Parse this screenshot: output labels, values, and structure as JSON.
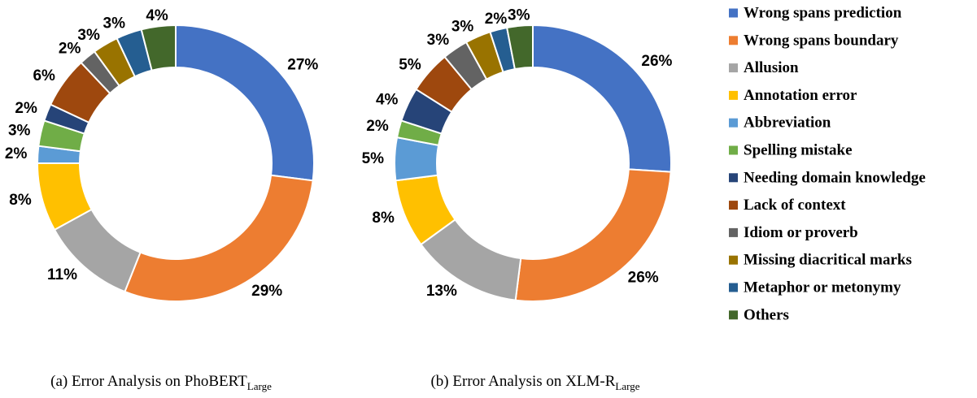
{
  "chart_data": [
    {
      "type": "pie",
      "donut": true,
      "caption": {
        "prefix": "(a) Error Analysis on ",
        "model": "PhoBERT",
        "subscript": "Large"
      },
      "categories": [
        "Wrong spans prediction",
        "Wrong spans boundary",
        "Allusion",
        "Annotation error",
        "Abbreviation",
        "Spelling mistake",
        "Needing domain knowledge",
        "Lack of context",
        "Idiom or proverb",
        "Missing diacritical marks",
        "Metaphor or metonymy",
        "Others"
      ],
      "values": [
        27,
        29,
        11,
        8,
        2,
        3,
        2,
        6,
        2,
        3,
        3,
        4
      ],
      "labels": [
        "27%",
        "29%",
        "11%",
        "8%",
        "2%",
        "3%",
        "2%",
        "6%",
        "2%",
        "3%",
        "3%",
        "4%"
      ]
    },
    {
      "type": "pie",
      "donut": true,
      "caption": {
        "prefix": "(b) Error Analysis on ",
        "model": "XLM-R",
        "subscript": "Large"
      },
      "categories": [
        "Wrong spans prediction",
        "Wrong spans boundary",
        "Allusion",
        "Annotation error",
        "Abbreviation",
        "Spelling mistake",
        "Needing domain knowledge",
        "Lack of context",
        "Idiom or proverb",
        "Missing diacritical marks",
        "Metaphor or metonymy",
        "Others"
      ],
      "values": [
        26,
        26,
        13,
        8,
        5,
        2,
        4,
        5,
        3,
        3,
        2,
        3
      ],
      "labels": [
        "26%",
        "26%",
        "13%",
        "8%",
        "5%",
        "2%",
        "4%",
        "5%",
        "3%",
        "3%",
        "2%",
        "3%"
      ]
    }
  ],
  "legend": {
    "placement": "right",
    "items": [
      {
        "label": "Wrong spans prediction",
        "color": "#4472C4"
      },
      {
        "label": "Wrong spans boundary",
        "color": "#ED7D31"
      },
      {
        "label": "Allusion",
        "color": "#A5A5A5"
      },
      {
        "label": "Annotation error",
        "color": "#FFC000"
      },
      {
        "label": "Abbreviation",
        "color": "#5B9BD5"
      },
      {
        "label": "Spelling mistake",
        "color": "#70AD47"
      },
      {
        "label": "Needing domain knowledge",
        "color": "#264478"
      },
      {
        "label": "Lack of context",
        "color": "#9E480E"
      },
      {
        "label": "Idiom or proverb",
        "color": "#636363"
      },
      {
        "label": "Missing diacritical marks",
        "color": "#997300"
      },
      {
        "label": "Metaphor or metonymy",
        "color": "#255E91"
      },
      {
        "label": "Others",
        "color": "#43682B"
      }
    ]
  }
}
